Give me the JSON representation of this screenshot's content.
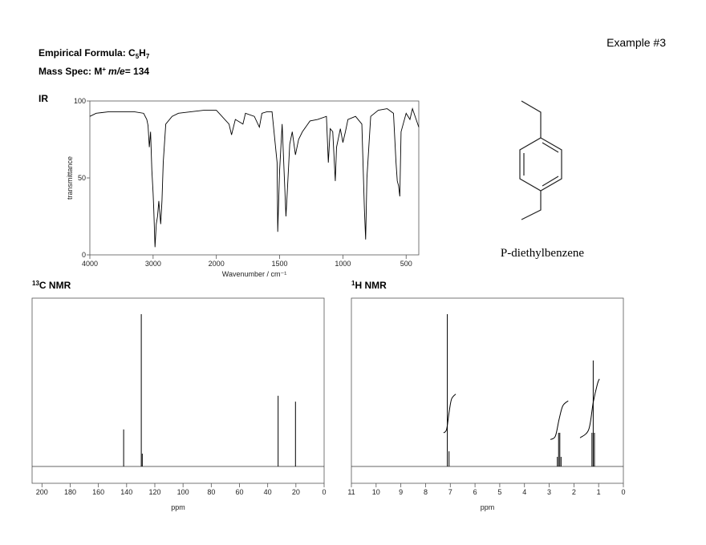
{
  "example": "Example #3",
  "empirical_formula": {
    "label": "Empirical Formula:",
    "parts": [
      {
        "text": "C",
        "sub": "5"
      },
      {
        "text": "H",
        "sub": "7"
      }
    ]
  },
  "mass_spec": {
    "label": "Mass Spec: M",
    "charge": "+",
    "ratio": "m/e",
    "value": "= 134"
  },
  "structure_name": "P-diethylbenzene",
  "chart_data": [
    {
      "type": "line",
      "title": "IR",
      "x": [
        4000,
        3900,
        3700,
        3500,
        3300,
        3150,
        3100,
        3080,
        3060,
        3040,
        3020,
        3000,
        2990,
        2970,
        2950,
        2930,
        2910,
        2880,
        2860,
        2840,
        2800,
        2700,
        2600,
        2400,
        2200,
        2000,
        1900,
        1880,
        1850,
        1790,
        1770,
        1700,
        1660,
        1640,
        1600,
        1560,
        1520,
        1515,
        1500,
        1480,
        1460,
        1450,
        1440,
        1420,
        1400,
        1375,
        1350,
        1320,
        1260,
        1200,
        1130,
        1115,
        1100,
        1080,
        1060,
        1050,
        1020,
        1000,
        980,
        960,
        900,
        850,
        830,
        820,
        810,
        780,
        720,
        650,
        600,
        580,
        570,
        560,
        550,
        540,
        500,
        470,
        450,
        400
      ],
      "values": [
        90,
        92,
        93,
        93,
        93,
        92,
        88,
        84,
        70,
        80,
        55,
        40,
        30,
        5,
        20,
        25,
        35,
        20,
        35,
        60,
        85,
        90,
        92,
        93,
        94,
        94,
        85,
        78,
        88,
        85,
        92,
        90,
        83,
        92,
        93,
        93,
        60,
        15,
        55,
        85,
        45,
        25,
        40,
        72,
        80,
        65,
        75,
        80,
        87,
        88,
        90,
        60,
        82,
        80,
        48,
        70,
        82,
        73,
        80,
        88,
        90,
        85,
        30,
        10,
        50,
        90,
        94,
        95,
        92,
        60,
        48,
        45,
        38,
        80,
        92,
        88,
        95,
        83
      ],
      "color": "#000000",
      "xlim": [
        4000,
        400
      ],
      "x_split": {
        "at": 2000,
        "factor": 2
      },
      "xticks": [
        4000,
        3000,
        2000,
        1500,
        1000,
        500
      ],
      "ylim": [
        0,
        100
      ],
      "yticks": [
        0,
        50,
        100
      ],
      "xlabel": "Wavenumber / cm⁻¹",
      "ylabel": "transmittance"
    },
    {
      "type": "stick",
      "title_sup": "13",
      "title": "C NMR",
      "x": [
        142.1,
        129.6,
        128.9,
        32.6,
        20.3
      ],
      "values": [
        22,
        90.5,
        7.6,
        42,
        38.5
      ],
      "color": "#000000",
      "xlim": [
        207,
        0
      ],
      "xticks": [
        200,
        180,
        160,
        140,
        120,
        100,
        80,
        60,
        40,
        20,
        0
      ],
      "ylim": [
        -10,
        100
      ],
      "xlabel": "ppm"
    },
    {
      "type": "stick",
      "title_sup": "1",
      "title": "H NMR",
      "x": [
        7.12,
        7.05,
        2.67,
        2.62,
        2.57,
        2.52,
        1.27,
        1.22,
        1.17
      ],
      "values": [
        90.5,
        9,
        5.7,
        20,
        20,
        5.7,
        20,
        63,
        20
      ],
      "color": "#000000",
      "integrals": [
        {
          "x": [
            7.27,
            7.15,
            7.05,
            6.95,
            6.78
          ],
          "values": [
            20,
            22,
            32,
            40,
            43
          ]
        },
        {
          "x": [
            2.95,
            2.75,
            2.6,
            2.45,
            2.23
          ],
          "values": [
            16,
            18,
            28,
            36,
            39
          ]
        },
        {
          "x": [
            1.75,
            1.4,
            1.22,
            1.05,
            0.97
          ],
          "values": [
            17,
            22,
            38,
            49,
            52
          ]
        }
      ],
      "xlim": [
        11,
        0
      ],
      "xticks": [
        11,
        10,
        9,
        8,
        7,
        6,
        5,
        4,
        3,
        2,
        1,
        0
      ],
      "ylim": [
        -10,
        100
      ],
      "xlabel": "ppm"
    }
  ]
}
